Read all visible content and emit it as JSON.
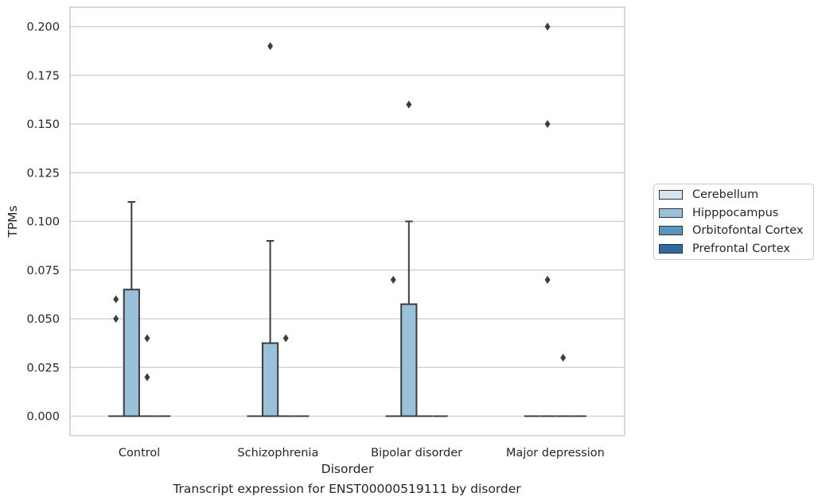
{
  "chart_data": {
    "type": "box",
    "title": "",
    "caption": "Transcript expression for ENST00000519111 by disorder",
    "xlabel": "Disorder",
    "ylabel": "TPMs",
    "ylim": [
      -0.01,
      0.21
    ],
    "yticks": [
      "0.000",
      "0.025",
      "0.050",
      "0.075",
      "0.100",
      "0.125",
      "0.150",
      "0.175",
      "0.200"
    ],
    "ytick_values": [
      0,
      0.025,
      0.05,
      0.075,
      0.1,
      0.125,
      0.15,
      0.175,
      0.2
    ],
    "categories": [
      "Control",
      "Schizophrenia",
      "Bipolar disorder",
      "Major depression"
    ],
    "grid": true,
    "legend_position": "right",
    "series": [
      {
        "name": "Cerebellum",
        "color": "#d6e5f2",
        "boxes": [
          {
            "q1": 0,
            "median": 0,
            "q3": 0,
            "whisker_low": 0,
            "whisker_high": 0,
            "outliers": [
              0.06,
              0.05
            ]
          },
          {
            "q1": 0,
            "median": 0,
            "q3": 0,
            "whisker_low": 0,
            "whisker_high": 0,
            "outliers": []
          },
          {
            "q1": 0,
            "median": 0,
            "q3": 0,
            "whisker_low": 0,
            "whisker_high": 0,
            "outliers": [
              0.07
            ]
          },
          {
            "q1": 0,
            "median": 0,
            "q3": 0,
            "whisker_low": 0,
            "whisker_high": 0,
            "outliers": []
          }
        ]
      },
      {
        "name": "Hipppocampus",
        "color": "#99c1da",
        "boxes": [
          {
            "q1": 0,
            "median": 0,
            "q3": 0.065,
            "whisker_low": 0,
            "whisker_high": 0.11,
            "outliers": []
          },
          {
            "q1": 0,
            "median": 0,
            "q3": 0.0375,
            "whisker_low": 0,
            "whisker_high": 0.09,
            "outliers": [
              0.19
            ]
          },
          {
            "q1": 0,
            "median": 0,
            "q3": 0.0575,
            "whisker_low": 0,
            "whisker_high": 0.1,
            "outliers": [
              0.16
            ]
          },
          {
            "q1": 0,
            "median": 0,
            "q3": 0,
            "whisker_low": 0,
            "whisker_high": 0,
            "outliers": [
              0.2,
              0.15,
              0.07
            ]
          }
        ]
      },
      {
        "name": "Orbitofontal Cortex",
        "color": "#5b94bd",
        "boxes": [
          {
            "q1": 0,
            "median": 0,
            "q3": 0,
            "whisker_low": 0,
            "whisker_high": 0,
            "outliers": [
              0.04,
              0.02
            ]
          },
          {
            "q1": 0,
            "median": 0,
            "q3": 0,
            "whisker_low": 0,
            "whisker_high": 0,
            "outliers": [
              0.04
            ]
          },
          {
            "q1": 0,
            "median": 0,
            "q3": 0,
            "whisker_low": 0,
            "whisker_high": 0,
            "outliers": []
          },
          {
            "q1": 0,
            "median": 0,
            "q3": 0,
            "whisker_low": 0,
            "whisker_high": 0,
            "outliers": [
              0.03
            ]
          }
        ]
      },
      {
        "name": "Prefrontal Cortex",
        "color": "#2f6ca6",
        "boxes": [
          {
            "q1": 0,
            "median": 0,
            "q3": 0,
            "whisker_low": 0,
            "whisker_high": 0,
            "outliers": []
          },
          {
            "q1": 0,
            "median": 0,
            "q3": 0,
            "whisker_low": 0,
            "whisker_high": 0,
            "outliers": []
          },
          {
            "q1": 0,
            "median": 0,
            "q3": 0,
            "whisker_low": 0,
            "whisker_high": 0,
            "outliers": []
          },
          {
            "q1": 0,
            "median": 0,
            "q3": 0,
            "whisker_low": 0,
            "whisker_high": 0,
            "outliers": []
          }
        ]
      }
    ]
  }
}
